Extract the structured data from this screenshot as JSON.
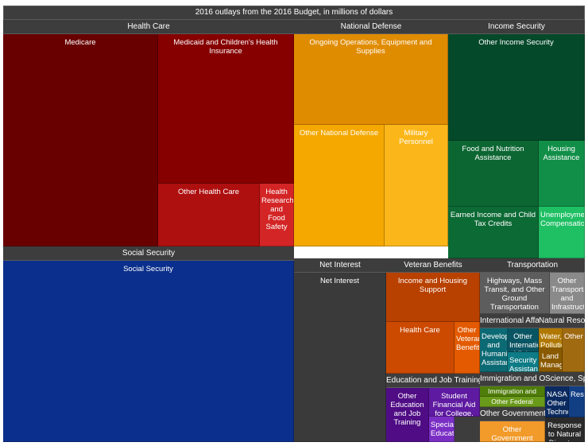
{
  "chart_data": {
    "type": "treemap",
    "title": "2016 outlays from the 2016 Budget, in millions of dollars",
    "groups": [
      {
        "name": "Health Care",
        "color": "#7d0000",
        "leaves": [
          {
            "name": "Medicare",
            "color": "#690000"
          },
          {
            "name": "Medicaid and Children's Health Insurance",
            "color": "#860000"
          },
          {
            "name": "Other Health Care",
            "color": "#ae0f0f"
          },
          {
            "name": "Health Research and Food Safety",
            "color": "#d32525"
          }
        ]
      },
      {
        "name": "National Defense",
        "color": "#e08c00",
        "leaves": [
          {
            "name": "Ongoing Operations, Equipment and Supplies",
            "color": "#e08c00"
          },
          {
            "name": "Other National Defense",
            "color": "#f4a800"
          },
          {
            "name": "Military Personnel",
            "color": "#fbb71a"
          }
        ]
      },
      {
        "name": "Income Security",
        "color": "#0a5a2a",
        "leaves": [
          {
            "name": "Other Income Security",
            "color": "#04492a"
          },
          {
            "name": "Food and Nutrition Assistance",
            "color": "#0c6632"
          },
          {
            "name": "Housing Assistance",
            "color": "#118f48"
          },
          {
            "name": "Earned Income and Child Tax Credits",
            "color": "#0c6a35"
          },
          {
            "name": "Unemployment Compensation",
            "color": "#1fbf64"
          }
        ]
      },
      {
        "name": "Social Security",
        "color": "#0b2f8c",
        "leaves": [
          {
            "name": "Social Security",
            "color": "#0b2f8c"
          }
        ]
      },
      {
        "name": "Net Interest",
        "color": "#3a3a3a",
        "leaves": [
          {
            "name": "Net Interest",
            "color": "#3a3a3a"
          }
        ]
      },
      {
        "name": "Veteran Benefits",
        "color": "#b84100",
        "leaves": [
          {
            "name": "Income and Housing Support",
            "color": "#b84100"
          },
          {
            "name": "Health Care",
            "color": "#cc4a00"
          },
          {
            "name": "Other Veteran Benefits",
            "color": "#e35a00"
          }
        ]
      },
      {
        "name": "Transportation",
        "color": "#5a5a5a",
        "leaves": [
          {
            "name": "Highways, Mass Transit, and Other Ground Transportation",
            "color": "#5d5d5d"
          },
          {
            "name": "Other Transportation and Infrastructure",
            "color": "#8a8a8a"
          }
        ]
      },
      {
        "name": "International Affairs",
        "color": "#0a6470",
        "leaves": [
          {
            "name": "Development and Humanitarian Assistance",
            "color": "#0c6a74"
          },
          {
            "name": "Other International Affairs",
            "color": "#0a5563"
          },
          {
            "name": "Security Assistance",
            "color": "#0e7c86"
          }
        ]
      },
      {
        "name": "Natural Resources and Environment",
        "color": "#8a5a00",
        "leaves": [
          {
            "name": "Water, Pollution, and Environment",
            "color": "#b07800"
          },
          {
            "name": "Land Management",
            "color": "#8a5a00"
          },
          {
            "name": "Other",
            "color": "#a06a10"
          }
        ]
      },
      {
        "name": "Education and Job Training",
        "color": "#5b1299",
        "leaves": [
          {
            "name": "Other Education and Job Training",
            "color": "#4f0c84"
          },
          {
            "name": "Student Financial Aid for College, Funds for School",
            "color": "#5e1aa0"
          },
          {
            "name": "Special Education",
            "color": "#7a2ec4"
          }
        ]
      },
      {
        "name": "Immigration and Other Federal Law Enforcement",
        "color": "#5a8a10",
        "leaves": [
          {
            "name": "Immigration and Law Enforcement",
            "color": "#4f7d0a"
          },
          {
            "name": "Other Federal",
            "color": "#6a9a1a"
          }
        ]
      },
      {
        "name": "Science, Space, and Technology",
        "color": "#0b2a60",
        "leaves": [
          {
            "name": "NASA Other Technology Programs",
            "color": "#0b2a60"
          },
          {
            "name": "Research",
            "color": "#123e84"
          }
        ]
      },
      {
        "name": "Other Government",
        "color": "#e08a1a",
        "leaves": [
          {
            "name": "Other Government Programs",
            "color": "#f29a2a"
          }
        ]
      },
      {
        "name": "Response to Natural Disasters",
        "color": "#2a2a2a",
        "leaves": [
          {
            "name": "Response to Natural Disasters",
            "color": "#2a2a2a"
          }
        ]
      }
    ]
  }
}
